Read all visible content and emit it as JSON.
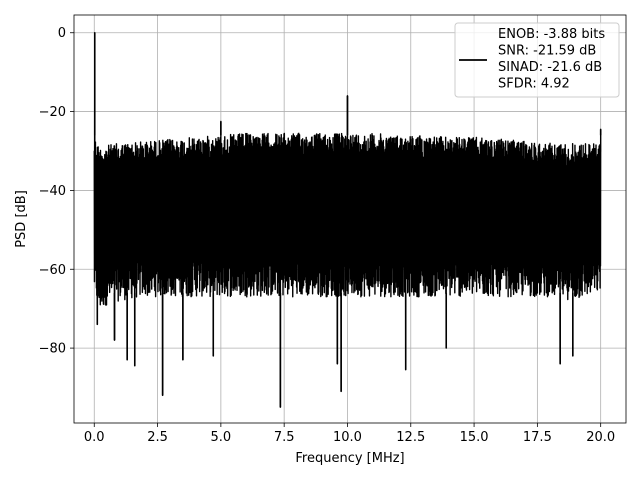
{
  "chart_data": {
    "type": "line",
    "title": "",
    "xlabel": "Frequency [MHz]",
    "ylabel": "PSD [dB]",
    "xlim": [
      -0.8,
      21.0
    ],
    "ylim": [
      -99.0,
      4.5
    ],
    "xticks": [
      0.0,
      2.5,
      5.0,
      7.5,
      10.0,
      12.5,
      15.0,
      17.5,
      20.0
    ],
    "xtick_labels": [
      "0.0",
      "2.5",
      "5.0",
      "7.5",
      "10.0",
      "12.5",
      "15.0",
      "17.5",
      "20.0"
    ],
    "yticks": [
      0,
      -20,
      -40,
      -60,
      -80
    ],
    "ytick_labels": [
      "0",
      "−20",
      "−40",
      "−60",
      "−80"
    ],
    "grid": true,
    "legend_position": "top-right",
    "series": [
      {
        "color": "#000000",
        "noise_floor_envelope": {
          "x": [
            0.0,
            0.2,
            0.5,
            1.0,
            2.0,
            3.0,
            4.0,
            5.0,
            6.0,
            7.0,
            8.0,
            9.0,
            10.0,
            11.0,
            12.0,
            13.0,
            14.0,
            15.0,
            16.0,
            17.0,
            18.0,
            19.0,
            20.0
          ],
          "upper": [
            -26,
            -29,
            -28.5,
            -28,
            -27.5,
            -27,
            -26.5,
            -26,
            -25.5,
            -25.5,
            -25.5,
            -25.5,
            -25.5,
            -25.5,
            -26,
            -26,
            -26.5,
            -26.5,
            -27,
            -27.5,
            -28,
            -28,
            -28
          ],
          "lower": [
            -66,
            -71,
            -69,
            -68,
            -67,
            -67,
            -67,
            -67,
            -67,
            -67,
            -67,
            -67,
            -67,
            -67,
            -67,
            -67,
            -67,
            -67,
            -67,
            -67,
            -67,
            -68,
            -66
          ]
        },
        "peaks": [
          {
            "x": 0.02,
            "y": 0.0
          },
          {
            "x": 5.0,
            "y": -22.5
          },
          {
            "x": 10.0,
            "y": -16.0
          },
          {
            "x": 20.0,
            "y": -24.5
          }
        ],
        "dips": [
          {
            "x": 0.12,
            "y": -74
          },
          {
            "x": 0.8,
            "y": -78
          },
          {
            "x": 1.3,
            "y": -83
          },
          {
            "x": 1.6,
            "y": -84.5
          },
          {
            "x": 2.7,
            "y": -92
          },
          {
            "x": 3.5,
            "y": -83
          },
          {
            "x": 4.7,
            "y": -82
          },
          {
            "x": 7.35,
            "y": -95
          },
          {
            "x": 9.6,
            "y": -84
          },
          {
            "x": 9.75,
            "y": -91
          },
          {
            "x": 12.3,
            "y": -85.5
          },
          {
            "x": 13.9,
            "y": -80
          },
          {
            "x": 18.4,
            "y": -84
          },
          {
            "x": 18.9,
            "y": -82
          }
        ]
      }
    ],
    "legend": {
      "lines": [
        "ENOB: -3.88 bits",
        "SNR: -21.59 dB",
        "SINAD: -21.6 dB",
        "SFDR: 4.92"
      ],
      "color": "#000000"
    }
  }
}
